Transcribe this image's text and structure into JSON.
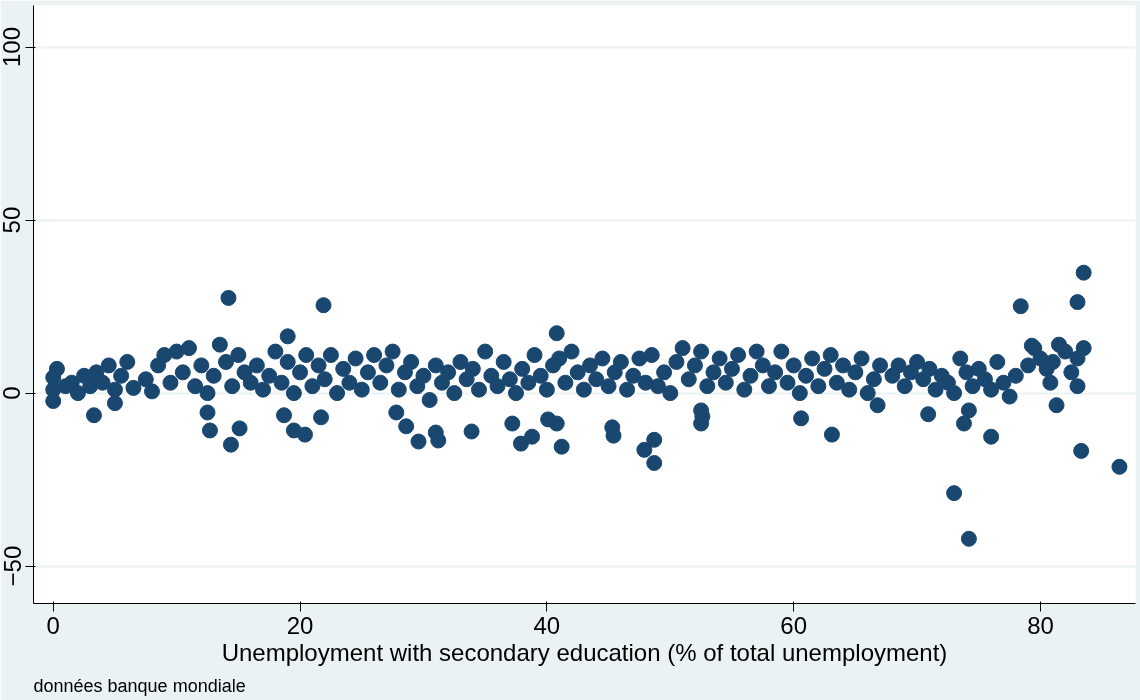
{
  "chart_data": {
    "type": "scatter",
    "xlabel": "Unemployment with secondary education (% of total unemployment)",
    "annotations": [
      "données banque mondiale"
    ],
    "xlim": [
      -1.6,
      87.7
    ],
    "ylim": [
      -60.8,
      112
    ],
    "xticks": [
      0,
      20,
      40,
      60,
      80
    ],
    "yticks": [
      -50,
      0,
      50,
      100
    ],
    "grid": "y",
    "marker": "circle",
    "series": [
      {
        "color": "#1a476f",
        "x": [
          0,
          0,
          0.3,
          1,
          1.5,
          2,
          2.5,
          3,
          3.5,
          4,
          4.5,
          5,
          5.5,
          6,
          6.5,
          7.5,
          8,
          8.5,
          9,
          9.5,
          10,
          10.5,
          11,
          11.5,
          12,
          12.5,
          13,
          13.5,
          14,
          14.5,
          15,
          15.5,
          16,
          16.5,
          17,
          17.5,
          18,
          18.5,
          19,
          19.5,
          20,
          20.5,
          21,
          21.5,
          22,
          22.5,
          23,
          23.5,
          24,
          24.5,
          25,
          25.5,
          26,
          26.5,
          27,
          27.5,
          28,
          28.5,
          29,
          29.5,
          30,
          30.5,
          31,
          31.5,
          32,
          32.5,
          33,
          33.5,
          34,
          34.5,
          35,
          35.5,
          36,
          36.5,
          37,
          37.5,
          38,
          38.5,
          39,
          39.5,
          40,
          40.5,
          41,
          41.5,
          42,
          42.5,
          43,
          43.5,
          44,
          44.5,
          45,
          45.5,
          46,
          46.5,
          47,
          47.5,
          48,
          48.5,
          49,
          49.5,
          50,
          50.5,
          51,
          51.5,
          52,
          52.5,
          53,
          53.5,
          54,
          54.5,
          55,
          55.5,
          56,
          56.5,
          57,
          57.5,
          58,
          58.5,
          59,
          59.5,
          60,
          60.5,
          61,
          61.5,
          62,
          62.5,
          63,
          63.5,
          64,
          64.5,
          65,
          65.5,
          66,
          66.5,
          67,
          66.8,
          68,
          68.5,
          69,
          69.5,
          70,
          70.5,
          71,
          71.5,
          72,
          72.5,
          73,
          73.5,
          74,
          74.5,
          75,
          75.5,
          76,
          76.5,
          77,
          77.5,
          78,
          79,
          79.5,
          80,
          80.5,
          81,
          81.5,
          82,
          82.5,
          83,
          83,
          83.5,
          80.8,
          14.2,
          21.9,
          19.0,
          40.8,
          83.5,
          78.4,
          83.0,
          79.3,
          86.4,
          73.0,
          74.2,
          83.3,
          14.4,
          12.7,
          15.1,
          20.4,
          19.5,
          29.6,
          31.0,
          31.2,
          33.9,
          37.9,
          38.8,
          37.2,
          41.2,
          40.8,
          40.1,
          45.3,
          45.4,
          47.9,
          48.7,
          48.7,
          60.6,
          63.1,
          70.9,
          73.8,
          74.2,
          76.0,
          81.3,
          3.3,
          5.0,
          0,
          18.7,
          12.5,
          21.7,
          27.8,
          28.6,
          52.5,
          52.5,
          52.6
        ],
        "values": [
          1,
          4.5,
          7,
          2,
          3,
          0,
          5,
          2,
          6,
          3,
          8,
          1,
          5,
          9,
          1.5,
          4,
          0.5,
          8,
          11,
          3,
          12,
          6,
          13,
          2,
          8,
          0,
          5,
          14,
          9,
          2,
          11,
          6,
          3,
          8,
          1,
          5,
          12,
          3,
          9,
          0,
          6,
          11,
          2,
          8,
          4,
          11,
          0,
          7,
          3,
          10,
          1,
          6,
          11,
          3,
          8,
          12,
          1,
          6,
          9,
          2,
          5,
          -2,
          8,
          3,
          6,
          0,
          9,
          4,
          7,
          1,
          12,
          5,
          2,
          9,
          4,
          0,
          7,
          3,
          11,
          5,
          1,
          8,
          10,
          3,
          12,
          6,
          1,
          8,
          4,
          10,
          2,
          6,
          9,
          1,
          5,
          10,
          3,
          11,
          2,
          6,
          0,
          9,
          13,
          4,
          8,
          12,
          2,
          6,
          10,
          3,
          7,
          11,
          1,
          5,
          12,
          8,
          2,
          6,
          12,
          3,
          8,
          0,
          5,
          10,
          2,
          7,
          11,
          3,
          8,
          1,
          6,
          10,
          0,
          4,
          8,
          -3.5,
          5,
          8,
          2,
          6,
          9,
          4,
          7,
          1,
          5,
          3,
          0,
          10,
          6,
          2,
          7,
          4,
          1,
          9,
          3,
          -1,
          5,
          8,
          13,
          10,
          7,
          9,
          14,
          12,
          6,
          2,
          10,
          13,
          3,
          27.5,
          25.4,
          16.4,
          17.3,
          34.8,
          25.1,
          26.3,
          13.7,
          -21.3,
          -28.9,
          -42.1,
          -16.7,
          -14.9,
          -10.8,
          -10.2,
          -12.0,
          -10.8,
          -14.0,
          -11.4,
          -13.7,
          -11.1,
          -14.6,
          -12.6,
          -8.8,
          -15.5,
          -8.8,
          -7.6,
          -9.9,
          -12.3,
          -16.4,
          -13.5,
          -20.2,
          -7.3,
          -12.0,
          -6.1,
          -8.8,
          -5.0,
          -12.6,
          -3.5,
          -6.4,
          -2.9,
          -2.3,
          -6.4,
          -5.6,
          -7.0,
          -5.6,
          -9.6,
          -5.0,
          -8.8,
          -6.7
        ]
      }
    ]
  }
}
